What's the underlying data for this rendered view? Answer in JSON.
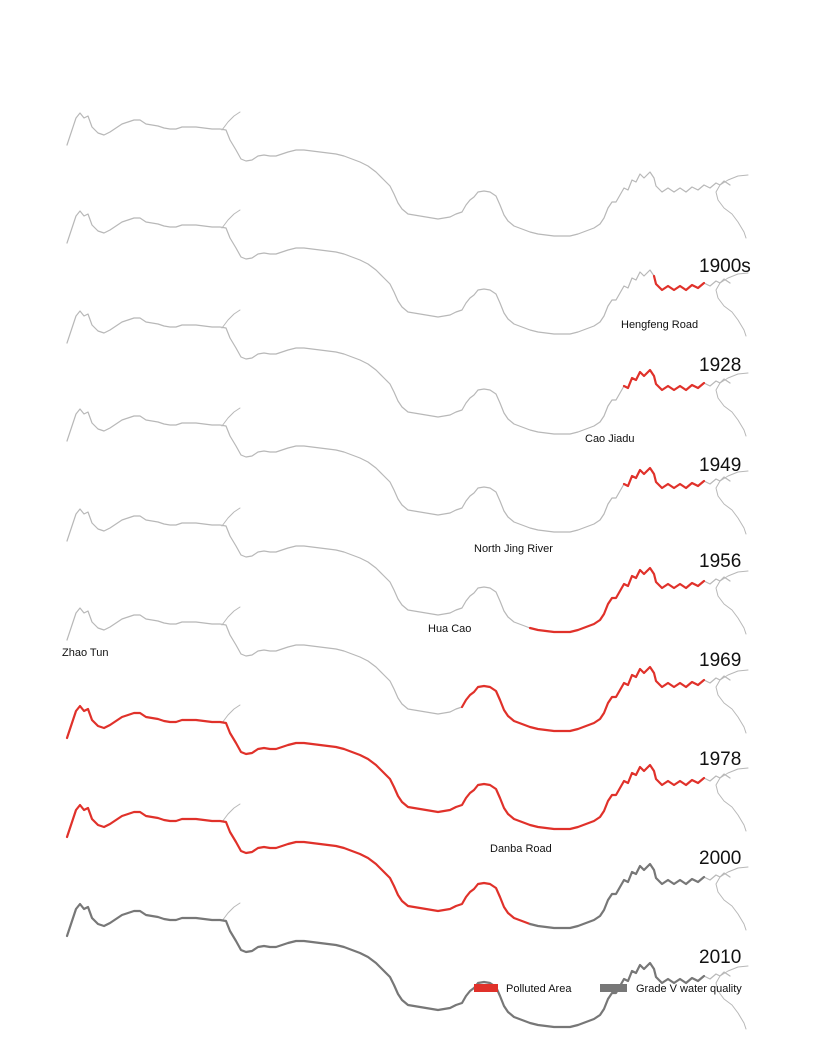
{
  "colors": {
    "river": "#b8b8b8",
    "polluted": "#e0312a",
    "grade_v": "#777777",
    "text": "#111111"
  },
  "rows": [
    {
      "year": "1900s",
      "place_label": "",
      "polluted_range": null,
      "grade_v_range": null
    },
    {
      "year": "1928",
      "place_label": "Hengfeng Road",
      "polluted_range": [
        0.88,
        0.96
      ],
      "grade_v_range": null
    },
    {
      "year": "1949",
      "place_label": "Cao Jiadu",
      "polluted_range": [
        0.81,
        0.96
      ],
      "grade_v_range": null
    },
    {
      "year": "1956",
      "place_label": "",
      "polluted_range": [
        0.81,
        0.96
      ],
      "grade_v_range": null
    },
    {
      "year": "1969",
      "place_label": "North Jing River",
      "polluted_range": [
        0.68,
        0.96
      ],
      "grade_v_range": null
    },
    {
      "year": "1978",
      "place_label": "Hua Cao",
      "polluted_range": [
        0.57,
        0.96
      ],
      "grade_v_range": null
    },
    {
      "year": "2000",
      "place_label": "Zhao Tun",
      "polluted_range": [
        0.0,
        0.96
      ],
      "grade_v_range": null
    },
    {
      "year": "2010",
      "place_label": "Danba Road",
      "polluted_range": [
        0.0,
        0.68
      ],
      "grade_v_range": [
        0.68,
        0.96
      ]
    },
    {
      "year": "",
      "place_label": "",
      "polluted_range": null,
      "grade_v_range": [
        0.0,
        0.96
      ]
    }
  ],
  "legend": {
    "polluted_label": "Polluted Area",
    "grade_v_label": "Grade V water quality"
  }
}
